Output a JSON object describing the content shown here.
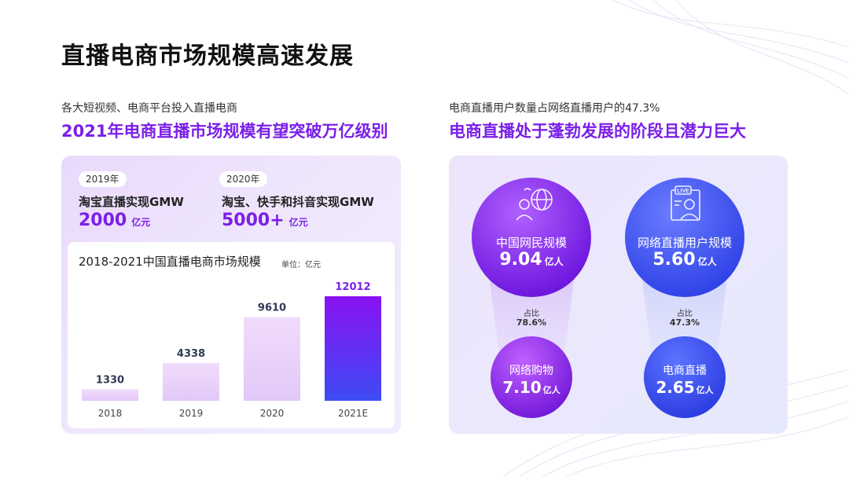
{
  "title": "直播电商市场规模高速发展",
  "left": {
    "subtitle_small": "各大短视频、电商平台投入直播电商",
    "subtitle_big": "2021年电商直播市场规模有望突破万亿级别",
    "stats": [
      {
        "year": "2019年",
        "label": "淘宝直播实现GMW",
        "value": "2000",
        "unit": "亿元"
      },
      {
        "year": "2020年",
        "label": "淘宝、快手和抖音实现GMW",
        "value": "5000+",
        "unit": "亿元"
      }
    ]
  },
  "right": {
    "subtitle_small": "电商直播用户数量占网络直播用户的47.3%",
    "subtitle_big": "电商直播处于蓬勃发展的阶段且潜力巨大",
    "groups": [
      {
        "top_label": "中国网民规模",
        "top_value": "9.04",
        "top_unit": "亿人",
        "icon": "globe-person-icon",
        "ratio_label": "占比",
        "ratio_value": "78.6%",
        "bottom_label": "网络购物",
        "bottom_value": "7.10",
        "bottom_unit": "亿人"
      },
      {
        "top_label": "网络直播用户规模",
        "top_value": "5.60",
        "top_unit": "亿人",
        "icon": "live-stream-icon",
        "ratio_label": "占比",
        "ratio_value": "47.3%",
        "bottom_label": "电商直播",
        "bottom_value": "2.65",
        "bottom_unit": "亿人"
      }
    ]
  },
  "chart_data": {
    "type": "bar",
    "title": "2018-2021中国直播电商市场规模",
    "unit_label": "单位：亿元",
    "categories": [
      "2018",
      "2019",
      "2020",
      "2021E"
    ],
    "values": [
      1330,
      4338,
      9610,
      12012
    ],
    "highlight_index": 3,
    "colors": {
      "normal_top": "#f1dcfb",
      "normal_bottom": "#e2c8f8",
      "highlight_top": "#8a12f2",
      "highlight_bottom": "#3d4bf4",
      "label": "#2f3a55",
      "highlight_label": "#7a1fe8"
    }
  },
  "colors": {
    "accent": "#7a1fe8",
    "blue": "#3d55f2"
  }
}
